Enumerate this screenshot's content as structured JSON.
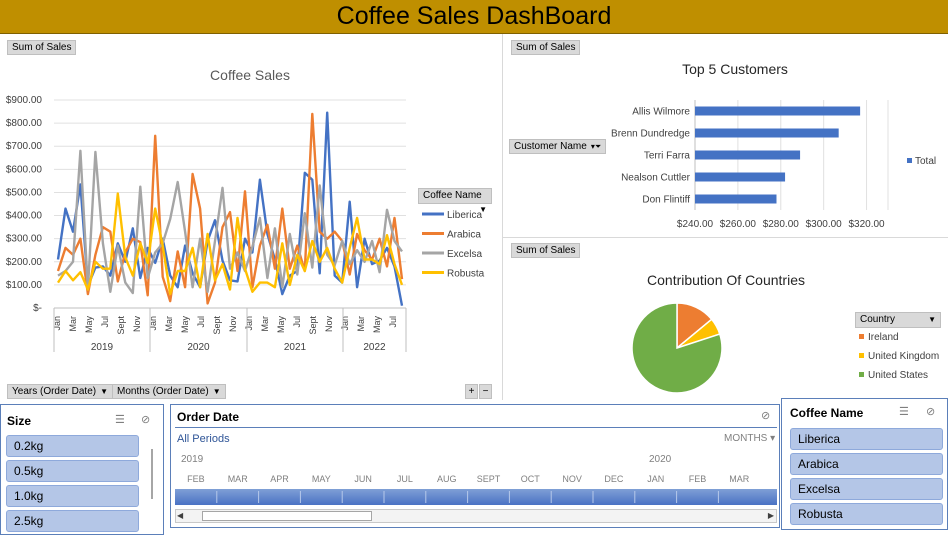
{
  "dashboard": {
    "title": "Coffee Sales DashBoard"
  },
  "line_panel": {
    "sum_button": "Sum of Sales",
    "years_button": "Years (Order Date)",
    "months_button": "Months (Order Date)",
    "expand": "+",
    "collapse": "−",
    "legend_header": "Coffee Name"
  },
  "bar_panel": {
    "sum_button": "Sum of Sales",
    "customer_button": "Customer Name",
    "legend_label": "Total"
  },
  "pie_panel": {
    "sum_button": "Sum of Sales",
    "legend_header": "Country"
  },
  "size_slicer": {
    "title": "Size",
    "items": [
      "0.2kg",
      "0.5kg",
      "1.0kg",
      "2.5kg"
    ]
  },
  "timeline": {
    "title": "Order Date",
    "all_periods": "All Periods",
    "level": "MONTHS",
    "year_labels": [
      "2019",
      "2020"
    ],
    "months": [
      "FEB",
      "MAR",
      "APR",
      "MAY",
      "JUN",
      "JUL",
      "AUG",
      "SEPT",
      "OCT",
      "NOV",
      "DEC",
      "JAN",
      "FEB",
      "MAR"
    ]
  },
  "coffee_slicer": {
    "title": "Coffee Name",
    "items": [
      "Liberica",
      "Arabica",
      "Excelsa",
      "Robusta"
    ]
  },
  "chart_data": [
    {
      "type": "line",
      "title": "Coffee Sales",
      "y_ticks": [
        "$-",
        "$100.00",
        "$200.00",
        "$300.00",
        "$400.00",
        "$500.00",
        "$600.00",
        "$700.00",
        "$800.00",
        "$900.00"
      ],
      "ylim": [
        0,
        900
      ],
      "x_month_labels": [
        "Jan",
        "Mar",
        "May",
        "Jul",
        "Sept",
        "Nov",
        "Jan",
        "Mar",
        "May",
        "Jul",
        "Sept",
        "Nov",
        "Jan",
        "Mar",
        "May",
        "Jul",
        "Sept",
        "Nov",
        "Jan",
        "Mar",
        "May",
        "Jul"
      ],
      "x_year_labels": [
        "2019",
        "2020",
        "2021",
        "2022"
      ],
      "grid": true,
      "legend": "right",
      "series": [
        {
          "name": "Liberica",
          "color": "#4472c4",
          "values": [
            210,
            430,
            330,
            535,
            95,
            175,
            180,
            140,
            280,
            200,
            345,
            130,
            260,
            195,
            300,
            140,
            90,
            270,
            150,
            90,
            290,
            380,
            205,
            120,
            115,
            300,
            240,
            555,
            320,
            210,
            60,
            140,
            160,
            585,
            555,
            150,
            845,
            140,
            110,
            460,
            90,
            300,
            190,
            205,
            260,
            180,
            10
          ]
        },
        {
          "name": "Arabica",
          "color": "#ed7d31",
          "values": [
            160,
            260,
            230,
            300,
            60,
            230,
            350,
            330,
            115,
            240,
            300,
            285,
            55,
            745,
            135,
            30,
            245,
            90,
            580,
            430,
            20,
            110,
            350,
            415,
            160,
            505,
            90,
            270,
            360,
            170,
            430,
            170,
            270,
            160,
            840,
            330,
            300,
            330,
            290,
            145,
            320,
            250,
            210,
            300,
            180,
            390,
            125
          ]
        },
        {
          "name": "Excelsa",
          "color": "#a5a5a5",
          "values": [
            140,
            160,
            200,
            680,
            80,
            675,
            280,
            70,
            270,
            110,
            65,
            525,
            130,
            240,
            280,
            385,
            545,
            330,
            90,
            300,
            70,
            290,
            520,
            170,
            240,
            160,
            265,
            390,
            130,
            345,
            90,
            320,
            145,
            410,
            175,
            530,
            230,
            185,
            290,
            190,
            250,
            200,
            290,
            155,
            425,
            290,
            245
          ]
        },
        {
          "name": "Robusta",
          "color": "#ffc000",
          "values": [
            110,
            160,
            120,
            155,
            80,
            200,
            170,
            170,
            495,
            220,
            140,
            280,
            195,
            430,
            270,
            60,
            160,
            160,
            260,
            90,
            320,
            120,
            190,
            80,
            390,
            170,
            70,
            110,
            110,
            90,
            280,
            100,
            230,
            160,
            290,
            200,
            260,
            170,
            110,
            260,
            390,
            210,
            210,
            190,
            315,
            190,
            100
          ]
        }
      ]
    },
    {
      "type": "bar",
      "title": "Top 5 Customers",
      "categories": [
        "Allis Wilmore",
        "Brenn Dundredge",
        "Terri Farra",
        "Nealson Cuttler",
        "Don Flintiff"
      ],
      "series": [
        {
          "name": "Total",
          "values": [
            317,
            307,
            289,
            282,
            278
          ]
        }
      ],
      "x_ticks": [
        "$240.00",
        "$260.00",
        "$280.00",
        "$300.00",
        "$320.00"
      ],
      "xlim": [
        240,
        330
      ],
      "color": "#4472c4",
      "legend": "right"
    },
    {
      "type": "pie",
      "title": "Contribution Of Countries",
      "categories": [
        "Ireland",
        "United Kingdom",
        "United States"
      ],
      "values": [
        14,
        6,
        80
      ],
      "colors": [
        "#ed7d31",
        "#ffc000",
        "#70ad47"
      ],
      "legend": "right"
    }
  ]
}
